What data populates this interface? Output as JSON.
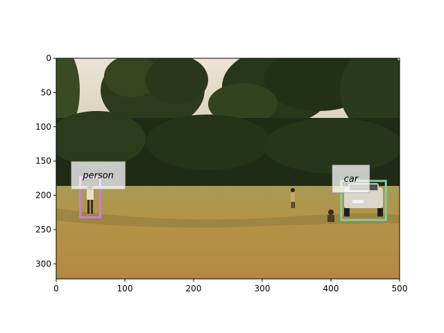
{
  "figure": {
    "x_ticks": [
      "0",
      "100",
      "200",
      "300",
      "400",
      "500"
    ],
    "y_ticks": [
      "0",
      "50",
      "100",
      "150",
      "200",
      "250",
      "300"
    ],
    "xlim": [
      0,
      500
    ],
    "ylim": [
      322,
      0
    ],
    "grid": false
  },
  "detections": [
    {
      "label": "person",
      "color": "#c77ee0",
      "bbox_data": [
        35,
        174,
        64,
        232
      ]
    },
    {
      "label": "car",
      "color": "#7fcf9f",
      "bbox_data": [
        415,
        179,
        480,
        236
      ]
    }
  ],
  "colors": {
    "sky": "#e7ddca",
    "trees_dark": "#1f2a16",
    "trees_mid": "#3b4a25",
    "grass_far": "#a8914d",
    "grass_near": "#b58a43",
    "grass_shadow": "#7a6a35"
  }
}
